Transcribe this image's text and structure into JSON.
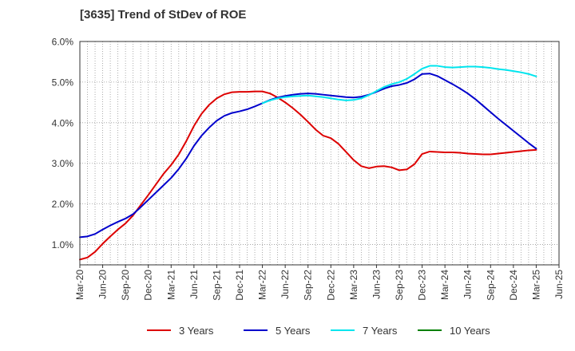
{
  "title": "[3635]  Trend of StDev of ROE",
  "chart_data": {
    "type": "line",
    "title": "[3635]  Trend of StDev of ROE",
    "xlabel": "",
    "ylabel": "",
    "x_ticks": [
      "Mar-20",
      "Jun-20",
      "Sep-20",
      "Dec-20",
      "Mar-21",
      "Jun-21",
      "Sep-21",
      "Dec-21",
      "Mar-22",
      "Jun-22",
      "Sep-22",
      "Dec-22",
      "Mar-23",
      "Jun-23",
      "Sep-23",
      "Dec-23",
      "Mar-24",
      "Jun-24",
      "Sep-24",
      "Dec-24",
      "Mar-25",
      "Jun-25"
    ],
    "y_ticks": [
      "1.0%",
      "2.0%",
      "3.0%",
      "4.0%",
      "5.0%",
      "6.0%"
    ],
    "ylim": [
      0.5,
      6.0
    ],
    "grid": true,
    "legend_position": "bottom",
    "series": [
      {
        "name": "3 Years",
        "color": "#dd0000",
        "x": [
          "Mar-20",
          "Apr-20",
          "May-20",
          "Jun-20",
          "Jul-20",
          "Aug-20",
          "Sep-20",
          "Oct-20",
          "Nov-20",
          "Dec-20",
          "Jan-21",
          "Feb-21",
          "Mar-21",
          "Apr-21",
          "May-21",
          "Jun-21",
          "Jul-21",
          "Aug-21",
          "Sep-21",
          "Oct-21",
          "Nov-21",
          "Dec-21",
          "Jan-22",
          "Feb-22",
          "Mar-22",
          "Apr-22",
          "May-22",
          "Jun-22",
          "Jul-22",
          "Aug-22",
          "Sep-22",
          "Oct-22",
          "Nov-22",
          "Dec-22",
          "Jan-23",
          "Feb-23",
          "Mar-23",
          "Apr-23",
          "May-23",
          "Jun-23",
          "Jul-23",
          "Aug-23",
          "Sep-23",
          "Oct-23",
          "Nov-23",
          "Dec-23",
          "Jan-24",
          "Feb-24",
          "Mar-24",
          "Apr-24",
          "May-24",
          "Jun-24",
          "Jul-24",
          "Aug-24",
          "Sep-24",
          "Oct-24",
          "Nov-24",
          "Dec-24",
          "Jan-25",
          "Feb-25",
          "Mar-25"
        ],
        "values": [
          0.63,
          0.68,
          0.82,
          1.02,
          1.2,
          1.37,
          1.52,
          1.72,
          1.97,
          2.22,
          2.48,
          2.74,
          2.96,
          3.22,
          3.55,
          3.92,
          4.22,
          4.44,
          4.6,
          4.7,
          4.75,
          4.76,
          4.76,
          4.77,
          4.77,
          4.72,
          4.62,
          4.5,
          4.36,
          4.2,
          4.02,
          3.83,
          3.68,
          3.62,
          3.48,
          3.28,
          3.08,
          2.93,
          2.88,
          2.92,
          2.93,
          2.9,
          2.83,
          2.85,
          2.98,
          3.23,
          3.29,
          3.28,
          3.27,
          3.27,
          3.26,
          3.24,
          3.23,
          3.22,
          3.22,
          3.24,
          3.26,
          3.28,
          3.3,
          3.32,
          3.33
        ]
      },
      {
        "name": "5 Years",
        "color": "#0000cc",
        "x": [
          "Mar-20",
          "Apr-20",
          "May-20",
          "Jun-20",
          "Jul-20",
          "Aug-20",
          "Sep-20",
          "Oct-20",
          "Nov-20",
          "Dec-20",
          "Jan-21",
          "Feb-21",
          "Mar-21",
          "Apr-21",
          "May-21",
          "Jun-21",
          "Jul-21",
          "Aug-21",
          "Sep-21",
          "Oct-21",
          "Nov-21",
          "Dec-21",
          "Jan-22",
          "Feb-22",
          "Mar-22",
          "Apr-22",
          "May-22",
          "Jun-22",
          "Jul-22",
          "Aug-22",
          "Sep-22",
          "Oct-22",
          "Nov-22",
          "Dec-22",
          "Jan-23",
          "Feb-23",
          "Mar-23",
          "Apr-23",
          "May-23",
          "Jun-23",
          "Jul-23",
          "Aug-23",
          "Sep-23",
          "Oct-23",
          "Nov-23",
          "Dec-23",
          "Jan-24",
          "Feb-24",
          "Mar-24",
          "Apr-24",
          "May-24",
          "Jun-24",
          "Jul-24",
          "Aug-24",
          "Sep-24",
          "Oct-24",
          "Nov-24",
          "Dec-24",
          "Jan-25",
          "Feb-25",
          "Mar-25"
        ],
        "values": [
          1.18,
          1.2,
          1.26,
          1.37,
          1.47,
          1.56,
          1.64,
          1.75,
          1.92,
          2.1,
          2.28,
          2.46,
          2.64,
          2.86,
          3.12,
          3.43,
          3.68,
          3.88,
          4.05,
          4.17,
          4.24,
          4.28,
          4.33,
          4.4,
          4.48,
          4.56,
          4.62,
          4.66,
          4.69,
          4.71,
          4.72,
          4.71,
          4.69,
          4.67,
          4.65,
          4.63,
          4.62,
          4.64,
          4.69,
          4.76,
          4.84,
          4.9,
          4.93,
          4.98,
          5.07,
          5.2,
          5.21,
          5.15,
          5.05,
          4.95,
          4.84,
          4.72,
          4.58,
          4.42,
          4.26,
          4.1,
          3.95,
          3.8,
          3.65,
          3.5,
          3.36
        ]
      },
      {
        "name": "7 Years",
        "color": "#00e5ee",
        "x": [
          "Mar-22",
          "Apr-22",
          "May-22",
          "Jun-22",
          "Jul-22",
          "Aug-22",
          "Sep-22",
          "Oct-22",
          "Nov-22",
          "Dec-22",
          "Jan-23",
          "Feb-23",
          "Mar-23",
          "Apr-23",
          "May-23",
          "Jun-23",
          "Jul-23",
          "Aug-23",
          "Sep-23",
          "Oct-23",
          "Nov-23",
          "Dec-23",
          "Jan-24",
          "Feb-24",
          "Mar-24",
          "Apr-24",
          "May-24",
          "Jun-24",
          "Jul-24",
          "Aug-24",
          "Sep-24",
          "Oct-24",
          "Nov-24",
          "Dec-24",
          "Jan-25",
          "Feb-25",
          "Mar-25"
        ],
        "values": [
          4.48,
          4.55,
          4.6,
          4.63,
          4.65,
          4.66,
          4.67,
          4.65,
          4.63,
          4.6,
          4.57,
          4.55,
          4.56,
          4.6,
          4.68,
          4.78,
          4.88,
          4.95,
          5.0,
          5.08,
          5.2,
          5.33,
          5.4,
          5.4,
          5.37,
          5.36,
          5.37,
          5.38,
          5.38,
          5.37,
          5.35,
          5.32,
          5.3,
          5.27,
          5.24,
          5.2,
          5.14
        ]
      },
      {
        "name": "10 Years",
        "color": "#008000",
        "x": [],
        "values": []
      }
    ]
  }
}
